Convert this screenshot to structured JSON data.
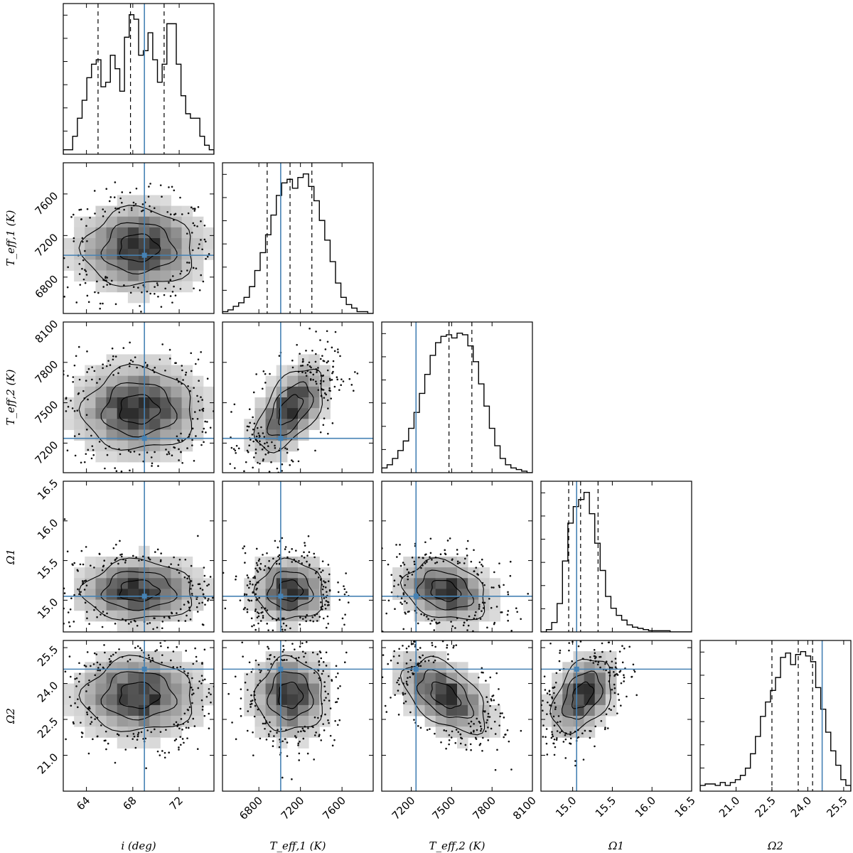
{
  "chart_data": {
    "type": "corner",
    "parameters": [
      {
        "key": "i",
        "label": "i (deg)",
        "range": [
          62.0,
          75.0
        ],
        "ticks": [
          64,
          68,
          72
        ],
        "tick_labels": [
          "64",
          "68",
          "72"
        ],
        "truth": 69.0,
        "quantiles": [
          65.0,
          67.8,
          70.7
        ]
      },
      {
        "key": "teff1",
        "label": "T_eff,1 (K)",
        "range": [
          6450,
          7900
        ],
        "ticks": [
          6800,
          7200,
          7600
        ],
        "tick_labels": [
          "6800",
          "7200",
          "7600"
        ],
        "truth": 7010,
        "quantiles": [
          6880,
          7100,
          7310
        ]
      },
      {
        "key": "teff2",
        "label": "T_eff,2 (K)",
        "range": [
          6980,
          8100
        ],
        "ticks": [
          7200,
          7500,
          7800,
          8100
        ],
        "tick_labels": [
          "7200",
          "7500",
          "7800",
          "8100"
        ],
        "truth": 7235,
        "quantiles": [
          7235,
          7480,
          7650
        ]
      },
      {
        "key": "omega1",
        "label": "Ω1",
        "range": [
          14.6,
          16.5
        ],
        "ticks": [
          15.0,
          15.5,
          16.0,
          16.5
        ],
        "tick_labels": [
          "15.0",
          "15.5",
          "16.0",
          "16.5"
        ],
        "truth": 15.05,
        "quantiles": [
          14.95,
          15.1,
          15.32
        ]
      },
      {
        "key": "omega2",
        "label": "Ω2",
        "range": [
          19.5,
          25.8
        ],
        "ticks": [
          21.0,
          22.5,
          24.0,
          25.5
        ],
        "tick_labels": [
          "21.0",
          "22.5",
          "24.0",
          "25.5"
        ],
        "truth": 24.6,
        "quantiles": [
          22.5,
          23.6,
          24.2
        ]
      }
    ],
    "histograms": [
      {
        "param": "i",
        "counts": [
          1,
          1,
          4,
          8,
          12,
          17,
          20,
          21,
          15,
          16,
          22,
          19,
          14,
          26,
          31,
          30,
          22,
          23,
          27,
          21,
          16,
          20,
          29,
          29,
          20,
          13,
          9,
          8,
          8,
          4,
          2,
          1
        ]
      },
      {
        "param": "teff1",
        "counts": [
          1,
          2,
          4,
          6,
          9,
          15,
          24,
          34,
          44,
          55,
          66,
          73,
          75,
          70,
          76,
          78,
          71,
          63,
          52,
          41,
          29,
          17,
          9,
          5,
          3,
          1,
          1,
          0
        ]
      },
      {
        "param": "teff2",
        "counts": [
          3,
          5,
          9,
          14,
          20,
          28,
          38,
          50,
          62,
          74,
          82,
          86,
          87,
          85,
          88,
          87,
          80,
          70,
          56,
          42,
          28,
          17,
          9,
          5,
          3,
          2,
          1,
          0
        ]
      },
      {
        "param": "omega1",
        "counts": [
          0,
          2,
          8,
          24,
          60,
          92,
          106,
          112,
          118,
          100,
          75,
          52,
          30,
          20,
          14,
          10,
          6,
          4,
          3,
          2,
          1,
          1,
          1,
          1,
          0,
          0,
          0,
          0
        ]
      },
      {
        "param": "omega2",
        "counts": [
          4,
          5,
          5,
          4,
          6,
          4,
          6,
          8,
          11,
          16,
          26,
          38,
          52,
          62,
          70,
          79,
          93,
          96,
          88,
          95,
          97,
          94,
          90,
          72,
          57,
          41,
          28,
          18,
          8,
          4
        ]
      }
    ],
    "scatter_panels": [
      {
        "x": "i",
        "y": "teff1",
        "center": [
          68.5,
          7080
        ],
        "sigma": [
          2.8,
          220
        ],
        "rho": 0.0
      },
      {
        "x": "i",
        "y": "teff2",
        "center": [
          68.5,
          7450
        ],
        "sigma": [
          2.8,
          180
        ],
        "rho": 0.0
      },
      {
        "x": "teff1",
        "y": "teff2",
        "center": [
          7100,
          7450
        ],
        "sigma": [
          190,
          180
        ],
        "rho": 0.55
      },
      {
        "x": "i",
        "y": "omega1",
        "center": [
          68.5,
          15.12
        ],
        "sigma": [
          2.8,
          0.22
        ],
        "rho": 0.0
      },
      {
        "x": "teff1",
        "y": "omega1",
        "center": [
          7100,
          15.12
        ],
        "sigma": [
          190,
          0.22
        ],
        "rho": 0.0
      },
      {
        "x": "teff2",
        "y": "omega1",
        "center": [
          7450,
          15.12
        ],
        "sigma": [
          180,
          0.22
        ],
        "rho": -0.25
      },
      {
        "x": "i",
        "y": "omega2",
        "center": [
          68.5,
          23.5
        ],
        "sigma": [
          2.8,
          0.9
        ],
        "rho": 0.0
      },
      {
        "x": "teff1",
        "y": "omega2",
        "center": [
          7100,
          23.5
        ],
        "sigma": [
          190,
          0.9
        ],
        "rho": 0.0
      },
      {
        "x": "teff2",
        "y": "omega2",
        "center": [
          7450,
          23.5
        ],
        "sigma": [
          180,
          0.9
        ],
        "rho": -0.5
      },
      {
        "x": "omega1",
        "y": "omega2",
        "center": [
          15.12,
          23.5
        ],
        "sigma": [
          0.22,
          0.9
        ],
        "rho": 0.4
      }
    ],
    "truth_color": "#4682b4",
    "contour_levels": 3
  }
}
